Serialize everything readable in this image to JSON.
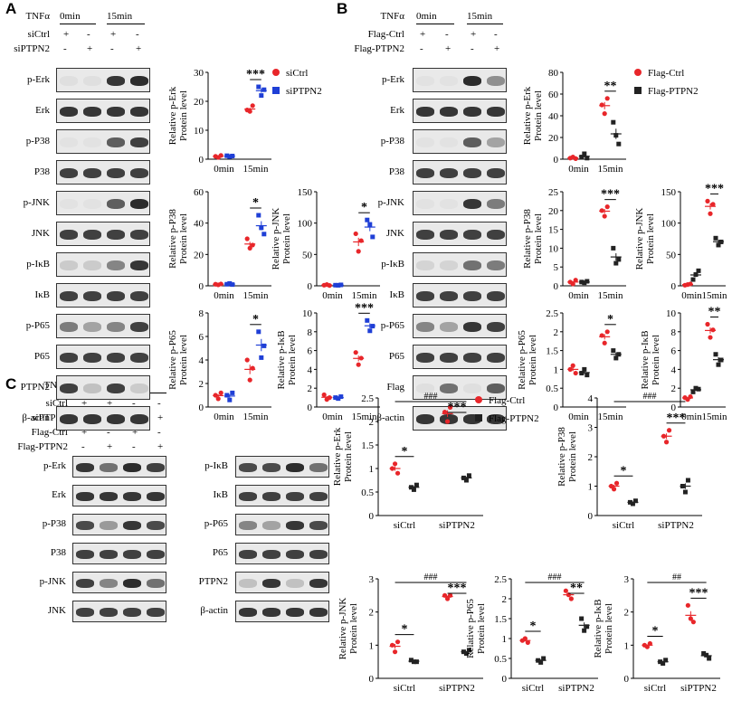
{
  "panels": {
    "a": "A",
    "b": "B",
    "c": "C"
  },
  "treat_A": {
    "tnf": "TNFα",
    "t0": "0min",
    "t15": "15min",
    "rows": [
      {
        "name": "siCtrl",
        "signs": [
          "+",
          "-",
          "+",
          "-"
        ]
      },
      {
        "name": "siPTPN2",
        "signs": [
          "-",
          "+",
          "-",
          "+"
        ]
      }
    ]
  },
  "treat_B": {
    "tnf": "TNFα",
    "t0": "0min",
    "t15": "15min",
    "rows": [
      {
        "name": "Flag-Ctrl",
        "signs": [
          "+",
          "-",
          "+",
          "-"
        ]
      },
      {
        "name": "Flag-PTPN2",
        "signs": [
          "-",
          "+",
          "-",
          "+"
        ]
      }
    ]
  },
  "treat_C": {
    "tnf": "TNFα",
    "t15": "15min",
    "rows": [
      {
        "name": "siCtrl",
        "signs": [
          "+",
          "+",
          "-",
          "-"
        ]
      },
      {
        "name": "siPTPN2",
        "signs": [
          "-",
          "-",
          "+",
          "+"
        ]
      },
      {
        "name": "Flag-Ctrl",
        "signs": [
          "+",
          "-",
          "+",
          "-"
        ]
      },
      {
        "name": "Flag-PTPN2",
        "signs": [
          "-",
          "+",
          "-",
          "+"
        ]
      }
    ]
  },
  "blots_A": [
    "p-Erk",
    "Erk",
    "p-P38",
    "P38",
    "p-JNK",
    "JNK",
    "p-IκB",
    "IκB",
    "p-P65",
    "P65",
    "PTPN2",
    "β-actin"
  ],
  "blots_B": [
    "p-Erk",
    "Erk",
    "p-P38",
    "P38",
    "p-JNK",
    "JNK",
    "p-IκB",
    "IκB",
    "p-P65",
    "P65",
    "Flag",
    "β-actin"
  ],
  "blots_C1": [
    "p-Erk",
    "Erk",
    "p-P38",
    "P38",
    "p-JNK",
    "JNK"
  ],
  "blots_C2": [
    "p-IκB",
    "IκB",
    "p-P65",
    "P65",
    "PTPN2",
    "β-actin"
  ],
  "legends": {
    "A": [
      {
        "name": "siCtrl",
        "color": "#e8262a",
        "marker": "circle"
      },
      {
        "name": "siPTPN2",
        "color": "#1f3fd6",
        "marker": "square"
      }
    ],
    "B": [
      {
        "name": "Flag-Ctrl",
        "color": "#e8262a",
        "marker": "circle"
      },
      {
        "name": "Flag-PTPN2",
        "color": "#222222",
        "marker": "square"
      }
    ],
    "C": [
      {
        "name": "Flag-Ctrl",
        "color": "#e8262a",
        "marker": "circle"
      },
      {
        "name": "Flag-PTPN2",
        "color": "#222222",
        "marker": "square"
      }
    ]
  },
  "chart_data": [
    {
      "id": "A-pErk",
      "type": "scatter",
      "ylabel": "Relative p-Erk\nProtein level",
      "categories": [
        "0min",
        "15min"
      ],
      "ylim": [
        0,
        30
      ],
      "yticks": [
        0,
        10,
        20,
        30
      ],
      "series": [
        {
          "name": "siCtrl",
          "values": [
            [
              1.0,
              0.6,
              1.3
            ],
            [
              17,
              16.5,
              18.5
            ]
          ]
        },
        {
          "name": "siPTPN2",
          "values": [
            [
              1.2,
              0.9,
              1.1
            ],
            [
              25,
              22,
              24
            ]
          ]
        }
      ],
      "annotations": [
        {
          "text": "***",
          "at": "15min"
        }
      ]
    },
    {
      "id": "A-pP38",
      "type": "scatter",
      "ylabel": "Relative p-P38\nProtein level",
      "categories": [
        "0min",
        "15min"
      ],
      "ylim": [
        0,
        60
      ],
      "yticks": [
        0,
        20,
        40,
        60
      ],
      "series": [
        {
          "name": "siCtrl",
          "values": [
            [
              1,
              0.6,
              1.2
            ],
            [
              30,
              24,
              26
            ]
          ]
        },
        {
          "name": "siPTPN2",
          "values": [
            [
              1,
              1.5,
              0.8
            ],
            [
              45,
              37,
              33
            ]
          ]
        }
      ],
      "annotations": [
        {
          "text": "*",
          "at": "15min"
        }
      ]
    },
    {
      "id": "A-pJNK",
      "type": "scatter",
      "ylabel": "Relative p-JNK\nProtein level",
      "categories": [
        "0min",
        "15min"
      ],
      "ylim": [
        0,
        150
      ],
      "yticks": [
        0,
        50,
        100,
        150
      ],
      "series": [
        {
          "name": "siCtrl",
          "values": [
            [
              1,
              2,
              0.5
            ],
            [
              83,
              55,
              72
            ]
          ]
        },
        {
          "name": "siPTPN2",
          "values": [
            [
              1,
              0.8,
              1.5
            ],
            [
              105,
              98,
              78
            ]
          ]
        }
      ],
      "annotations": [
        {
          "text": "*",
          "at": "15min"
        }
      ]
    },
    {
      "id": "A-pP65",
      "type": "scatter",
      "ylabel": "Relative p-P65\nProtein level",
      "categories": [
        "0min",
        "15min"
      ],
      "ylim": [
        0,
        8
      ],
      "yticks": [
        0,
        2,
        4,
        6,
        8
      ],
      "series": [
        {
          "name": "siCtrl",
          "values": [
            [
              1,
              0.7,
              1.2
            ],
            [
              4,
              2.3,
              3.3
            ]
          ]
        },
        {
          "name": "siPTPN2",
          "values": [
            [
              1,
              0.6,
              1.2
            ],
            [
              6.4,
              4.2,
              5.2
            ]
          ]
        }
      ],
      "annotations": [
        {
          "text": "*",
          "at": "15min"
        }
      ]
    },
    {
      "id": "A-pIkB",
      "type": "scatter",
      "ylabel": "Relative p-IκB\nProtein level",
      "categories": [
        "0min",
        "15min"
      ],
      "ylim": [
        0,
        10
      ],
      "yticks": [
        0,
        2,
        4,
        6,
        8,
        10
      ],
      "series": [
        {
          "name": "siCtrl",
          "values": [
            [
              1.3,
              0.8,
              1.0
            ],
            [
              5.8,
              4.5,
              5.2
            ]
          ]
        },
        {
          "name": "siPTPN2",
          "values": [
            [
              1,
              0.9,
              1.1
            ],
            [
              9.2,
              8.1,
              8.6
            ]
          ]
        }
      ],
      "annotations": [
        {
          "text": "***",
          "at": "15min"
        }
      ]
    },
    {
      "id": "B-pErk",
      "type": "scatter",
      "ylabel": "Relative p-Erk\nProtein level",
      "categories": [
        "0min",
        "15min"
      ],
      "ylim": [
        0,
        80
      ],
      "yticks": [
        0,
        20,
        40,
        60,
        80
      ],
      "series": [
        {
          "name": "Flag-Ctrl",
          "values": [
            [
              1,
              2,
              0.5
            ],
            [
              50,
              42,
              56
            ]
          ]
        },
        {
          "name": "Flag-PTPN2",
          "values": [
            [
              2,
              5,
              1
            ],
            [
              34,
              22,
              14
            ]
          ]
        }
      ],
      "annotations": [
        {
          "text": "**",
          "at": "15min"
        }
      ]
    },
    {
      "id": "B-pP38",
      "type": "scatter",
      "ylabel": "Relative p-P38\nProtein level",
      "categories": [
        "0min",
        "15min"
      ],
      "ylim": [
        0,
        25
      ],
      "yticks": [
        0,
        5,
        10,
        15,
        20,
        25
      ],
      "series": [
        {
          "name": "Flag-Ctrl",
          "values": [
            [
              1,
              0.5,
              1.5
            ],
            [
              20,
              18.5,
              21
            ]
          ]
        },
        {
          "name": "Flag-PTPN2",
          "values": [
            [
              1,
              0.8,
              1.2
            ],
            [
              10,
              6,
              7
            ]
          ]
        }
      ],
      "annotations": [
        {
          "text": "***",
          "at": "15min"
        }
      ]
    },
    {
      "id": "B-pJNK",
      "type": "scatter",
      "ylabel": "Relative p-JNK\nProtein level",
      "categories": [
        "0min",
        "15min"
      ],
      "ylim": [
        0,
        150
      ],
      "yticks": [
        0,
        50,
        100,
        150
      ],
      "series": [
        {
          "name": "Flag-Ctrl",
          "values": [
            [
              1,
              2,
              3
            ],
            [
              135,
              115,
              130
            ]
          ]
        },
        {
          "name": "Flag-PTPN2",
          "values": [
            [
              10,
              18,
              24
            ],
            [
              76,
              65,
              70
            ]
          ]
        }
      ],
      "annotations": [
        {
          "text": "***",
          "at": "15min"
        }
      ]
    },
    {
      "id": "B-pP65",
      "type": "scatter",
      "ylabel": "Relative p-P65\nProtein level",
      "categories": [
        "0min",
        "15min"
      ],
      "ylim": [
        0,
        2.5
      ],
      "yticks": [
        0,
        0.5,
        1.0,
        1.5,
        2.0,
        2.5
      ],
      "series": [
        {
          "name": "Flag-Ctrl",
          "values": [
            [
              1,
              1.1,
              0.9
            ],
            [
              1.9,
              1.7,
              2.0
            ]
          ]
        },
        {
          "name": "Flag-PTPN2",
          "values": [
            [
              0.9,
              1.0,
              0.85
            ],
            [
              1.5,
              1.3,
              1.4
            ]
          ]
        }
      ],
      "annotations": [
        {
          "text": "*",
          "at": "15min"
        }
      ]
    },
    {
      "id": "B-pIkB",
      "type": "scatter",
      "ylabel": "Relative p-IκB\nProtein level",
      "categories": [
        "0min",
        "15min"
      ],
      "ylim": [
        0,
        10
      ],
      "yticks": [
        0,
        2,
        4,
        6,
        8,
        10
      ],
      "series": [
        {
          "name": "Flag-Ctrl",
          "values": [
            [
              1,
              0.8,
              1.1
            ],
            [
              8.8,
              7.4,
              8.2
            ]
          ]
        },
        {
          "name": "Flag-PTPN2",
          "values": [
            [
              1.6,
              2,
              1.9
            ],
            [
              5.6,
              4.5,
              5.0
            ]
          ]
        }
      ],
      "annotations": [
        {
          "text": "**",
          "at": "15min"
        }
      ]
    },
    {
      "id": "C-pErk",
      "type": "scatter",
      "ylabel": "Relative p-Erk\nProtein level",
      "categories": [
        "siCtrl",
        "siPTPN2"
      ],
      "ylim": [
        0,
        2.5
      ],
      "yticks": [
        0,
        0.5,
        1.0,
        1.5,
        2.0,
        2.5
      ],
      "series": [
        {
          "name": "Flag-Ctrl",
          "values": [
            [
              1.0,
              1.1,
              0.9
            ],
            [
              2.2,
              2.0,
              2.3
            ]
          ]
        },
        {
          "name": "Flag-PTPN2",
          "values": [
            [
              0.6,
              0.55,
              0.65
            ],
            [
              0.8,
              0.75,
              0.85
            ]
          ]
        }
      ],
      "annotations": [
        {
          "text": "*",
          "at": "siCtrl"
        },
        {
          "text": "***",
          "at": "siPTPN2"
        },
        {
          "text": "###",
          "at": "between"
        }
      ]
    },
    {
      "id": "C-pP38",
      "type": "scatter",
      "ylabel": "Relative p-P38\nProtein level",
      "categories": [
        "siCtrl",
        "siPTPN2"
      ],
      "ylim": [
        0,
        4
      ],
      "yticks": [
        0,
        1,
        2,
        3,
        4
      ],
      "series": [
        {
          "name": "Flag-Ctrl",
          "values": [
            [
              1.0,
              0.9,
              1.1
            ],
            [
              2.7,
              2.5,
              2.9
            ]
          ]
        },
        {
          "name": "Flag-PTPN2",
          "values": [
            [
              0.45,
              0.4,
              0.5
            ],
            [
              1.0,
              0.8,
              1.2
            ]
          ]
        }
      ],
      "annotations": [
        {
          "text": "*",
          "at": "siCtrl"
        },
        {
          "text": "***",
          "at": "siPTPN2"
        },
        {
          "text": "###",
          "at": "between"
        }
      ]
    },
    {
      "id": "C-pJNK",
      "type": "scatter",
      "ylabel": "Relative p-JNK\nProtein level",
      "categories": [
        "siCtrl",
        "siPTPN2"
      ],
      "ylim": [
        0,
        3
      ],
      "yticks": [
        0,
        1,
        2,
        3
      ],
      "series": [
        {
          "name": "Flag-Ctrl",
          "values": [
            [
              1.0,
              0.8,
              1.1
            ],
            [
              2.5,
              2.4,
              2.5
            ]
          ]
        },
        {
          "name": "Flag-PTPN2",
          "values": [
            [
              0.55,
              0.5,
              0.5
            ],
            [
              0.8,
              0.75,
              0.85
            ]
          ]
        }
      ],
      "annotations": [
        {
          "text": "*",
          "at": "siCtrl"
        },
        {
          "text": "***",
          "at": "siPTPN2"
        },
        {
          "text": "###",
          "at": "between"
        }
      ]
    },
    {
      "id": "C-pP65",
      "type": "scatter",
      "ylabel": "Relative p-P65\nProtein level",
      "categories": [
        "siCtrl",
        "siPTPN2"
      ],
      "ylim": [
        0,
        2.5
      ],
      "yticks": [
        0,
        0.5,
        1.0,
        1.5,
        2.0,
        2.5
      ],
      "series": [
        {
          "name": "Flag-Ctrl",
          "values": [
            [
              0.95,
              1.0,
              0.9
            ],
            [
              2.2,
              2.1,
              2.0
            ]
          ]
        },
        {
          "name": "Flag-PTPN2",
          "values": [
            [
              0.45,
              0.4,
              0.5
            ],
            [
              1.5,
              1.2,
              1.3
            ]
          ]
        }
      ],
      "annotations": [
        {
          "text": "*",
          "at": "siCtrl"
        },
        {
          "text": "**",
          "at": "siPTPN2"
        },
        {
          "text": "###",
          "at": "between"
        }
      ]
    },
    {
      "id": "C-pIkB",
      "type": "scatter",
      "ylabel": "Relative p-IκB\nProtein level",
      "categories": [
        "siCtrl",
        "siPTPN2"
      ],
      "ylim": [
        0,
        3
      ],
      "yticks": [
        0,
        1,
        2,
        3
      ],
      "series": [
        {
          "name": "Flag-Ctrl",
          "values": [
            [
              1.0,
              0.95,
              1.05
            ],
            [
              2.2,
              1.8,
              1.7
            ]
          ]
        },
        {
          "name": "Flag-PTPN2",
          "values": [
            [
              0.5,
              0.45,
              0.55
            ],
            [
              0.75,
              0.7,
              0.6
            ]
          ]
        }
      ],
      "annotations": [
        {
          "text": "*",
          "at": "siCtrl"
        },
        {
          "text": "***",
          "at": "siPTPN2"
        },
        {
          "text": "##",
          "at": "between"
        }
      ]
    }
  ]
}
